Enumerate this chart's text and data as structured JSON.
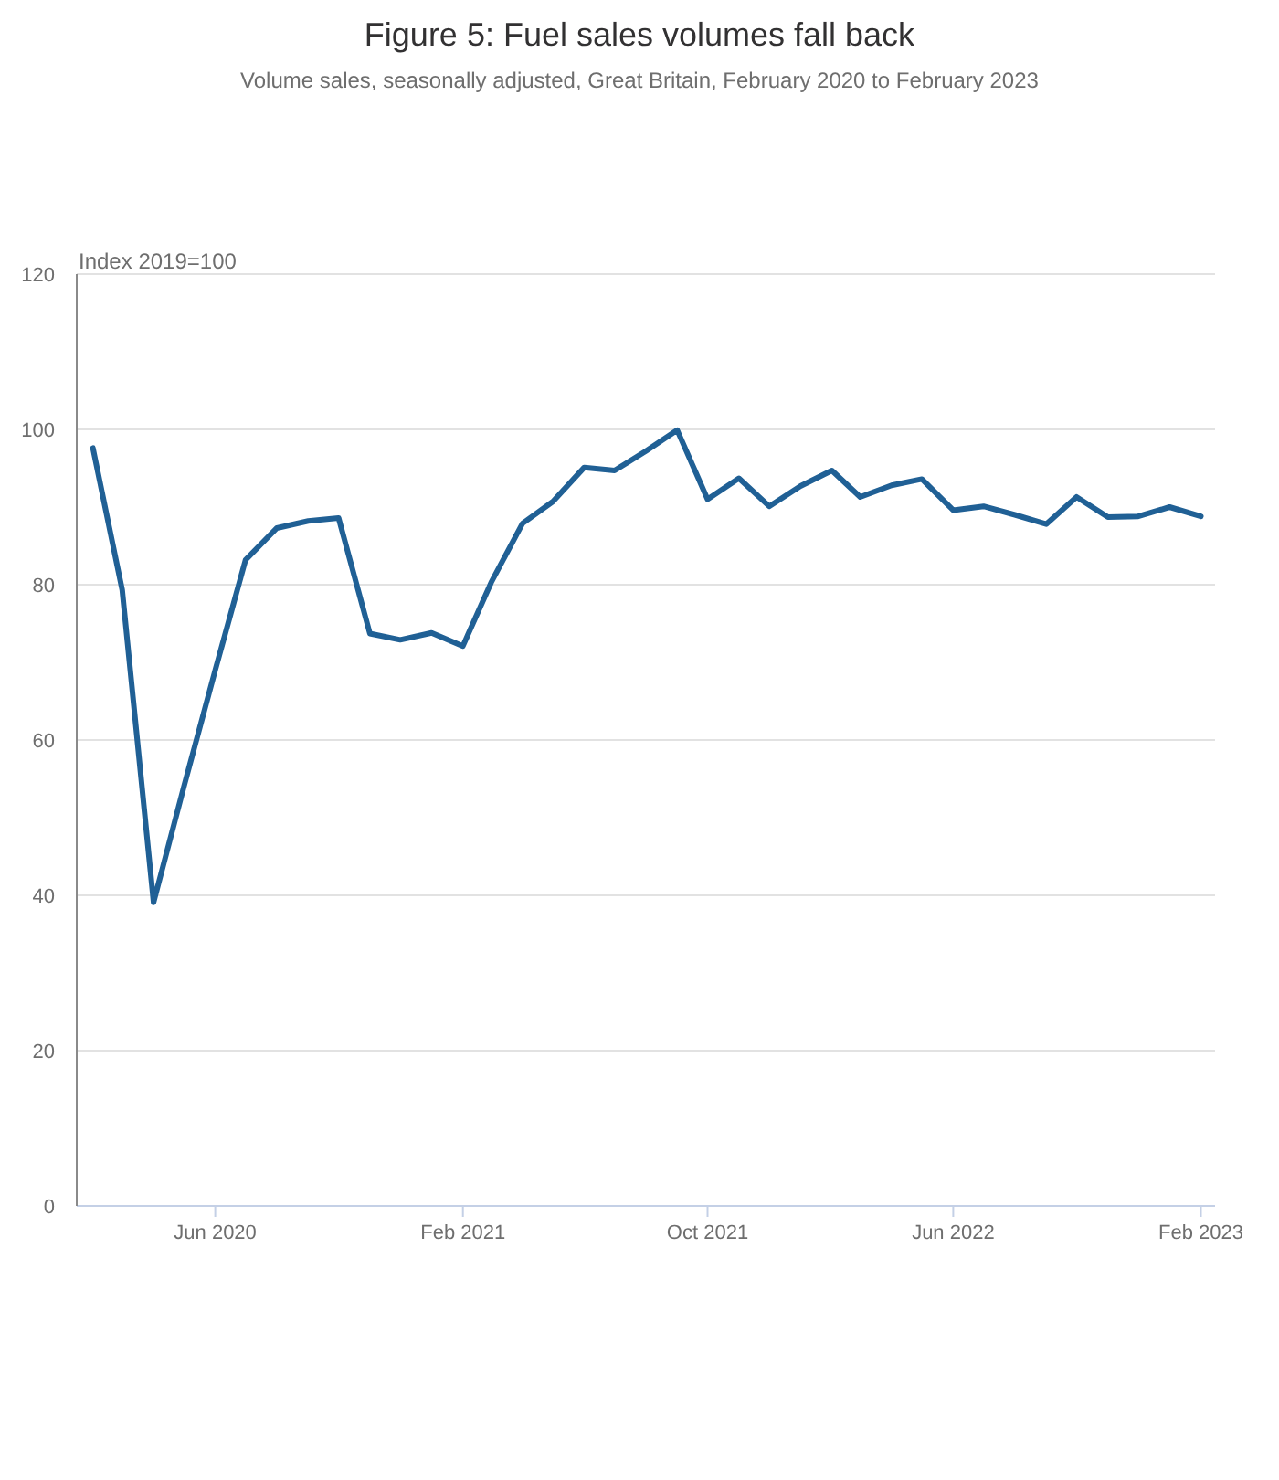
{
  "chart_data": {
    "type": "line",
    "title": "Figure 5: Fuel sales volumes fall back",
    "subtitle": "Volume sales, seasonally adjusted, Great Britain, February 2020 to February 2023",
    "ylabel": "Index 2019=100",
    "x": [
      "2020-02",
      "2020-03",
      "2020-04",
      "2020-05",
      "2020-06",
      "2020-07",
      "2020-08",
      "2020-09",
      "2020-10",
      "2020-11",
      "2020-12",
      "2021-01",
      "2021-02",
      "2021-03",
      "2021-04",
      "2021-05",
      "2021-06",
      "2021-07",
      "2021-08",
      "2021-09",
      "2021-10",
      "2021-11",
      "2021-12",
      "2022-01",
      "2022-02",
      "2022-03",
      "2022-04",
      "2022-05",
      "2022-06",
      "2022-07",
      "2022-08",
      "2022-09",
      "2022-10",
      "2022-11",
      "2022-12",
      "2023-01",
      "2023-02"
    ],
    "series": [
      {
        "color": "#206095",
        "values": [
          97.6,
          79.3,
          39.1,
          54,
          69,
          83.2,
          87.3,
          88.2,
          88.6,
          73.7,
          72.9,
          73.8,
          72.1,
          80.3,
          87.9,
          90.7,
          95.1,
          94.7,
          97.2,
          99.9,
          91.0,
          93.7,
          90.1,
          92.7,
          94.7,
          91.3,
          92.8,
          93.6,
          89.6,
          90.1,
          89.0,
          87.8,
          91.3,
          88.7,
          88.8,
          90.0,
          88.8
        ]
      }
    ],
    "xlim": [
      "2020-01-16",
      "2023-02-15"
    ],
    "xticks": [
      {
        "value": "2020-06",
        "label": "Jun 2020"
      },
      {
        "value": "2021-02",
        "label": "Feb 2021"
      },
      {
        "value": "2021-10",
        "label": "Oct 2021"
      },
      {
        "value": "2022-06",
        "label": "Jun 2022"
      },
      {
        "value": "2023-02",
        "label": "Feb 2023"
      }
    ],
    "ylim": [
      0,
      120
    ],
    "yticks": [
      0,
      20,
      40,
      60,
      80,
      100,
      120
    ],
    "grid": "y"
  }
}
